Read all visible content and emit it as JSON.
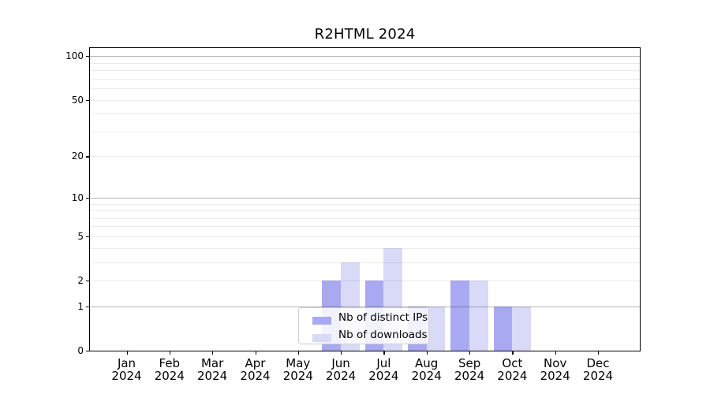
{
  "chart_data": {
    "type": "bar",
    "title": "R2HTML 2024",
    "categories": [
      "Jan 2024",
      "Feb 2024",
      "Mar 2024",
      "Apr 2024",
      "May 2024",
      "Jun 2024",
      "Jul 2024",
      "Aug 2024",
      "Sep 2024",
      "Oct 2024",
      "Nov 2024",
      "Dec 2024"
    ],
    "series": [
      {
        "name": "Nb of distinct IPs",
        "color": "#a9a9f2",
        "values": [
          0,
          0,
          0,
          0,
          0,
          2,
          2,
          1,
          2,
          1,
          0,
          0
        ]
      },
      {
        "name": "Nb of downloads",
        "color": "#d9d9f8",
        "values": [
          0,
          0,
          0,
          0,
          0,
          3,
          4,
          1,
          2,
          1,
          0,
          0
        ]
      }
    ],
    "xlabel": "",
    "ylabel": "",
    "yscale": "log1p",
    "ylim": [
      0,
      112
    ],
    "yticks": [
      0,
      1,
      2,
      5,
      10,
      20,
      50,
      100
    ],
    "major_gridlines": [
      1,
      10,
      100
    ],
    "minor_gridlines": [
      2,
      3,
      4,
      5,
      6,
      7,
      8,
      9,
      20,
      30,
      40,
      50,
      60,
      70,
      80,
      90
    ],
    "grid": true,
    "legend_position": "bottom-center"
  }
}
